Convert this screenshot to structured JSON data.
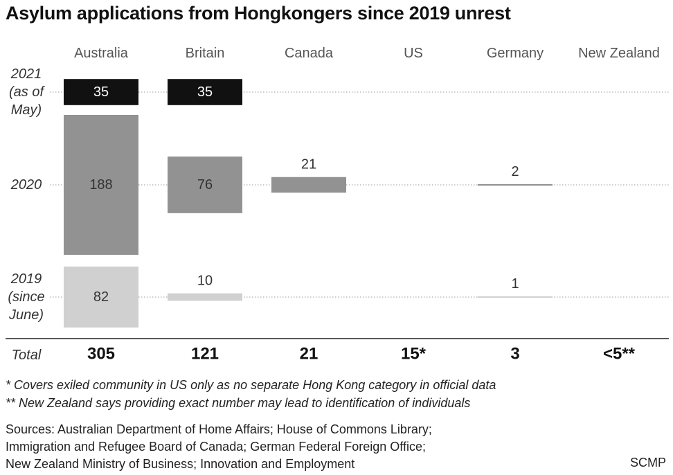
{
  "title": "Asylum applications from Hongkongers since 2019 unrest",
  "colors": {
    "2021": "#111111",
    "2020": "#929292",
    "2019": "#d0d0d0",
    "grid": "#999999"
  },
  "chart_data": {
    "type": "table",
    "categories": [
      "Australia",
      "Britain",
      "Canada",
      "US",
      "Germany",
      "New Zealand"
    ],
    "rows": [
      {
        "label_lines": [
          "2021",
          "(as of",
          "May)"
        ],
        "color_key": "2021",
        "values": [
          35,
          35,
          null,
          null,
          null,
          null
        ],
        "labels": [
          "35",
          "35",
          "",
          "",
          "",
          ""
        ]
      },
      {
        "label_lines": [
          "2020"
        ],
        "color_key": "2020",
        "values": [
          188,
          76,
          21,
          null,
          2,
          null
        ],
        "labels": [
          "188",
          "76",
          "21",
          "",
          "2",
          ""
        ]
      },
      {
        "label_lines": [
          "2019",
          "(since",
          "June)"
        ],
        "color_key": "2019",
        "values": [
          82,
          10,
          null,
          null,
          1,
          null
        ],
        "labels": [
          "82",
          "10",
          "",
          "",
          "1",
          ""
        ]
      }
    ],
    "total_label": "Total",
    "totals": [
      "305",
      "121",
      "21",
      "15*",
      "3",
      "<5**"
    ]
  },
  "footnotes": [
    "* Covers exiled community in US only as no separate Hong Kong category in official data",
    "** New Zealand says providing exact number may lead to identification of individuals"
  ],
  "sources": [
    "Sources: Australian Department of Home Affairs; House of Commons Library;",
    "Immigration and Refugee Board of Canada; German Federal Foreign Office;",
    "New Zealand Ministry of Business; Innovation and Employment"
  ],
  "brand": "SCMP"
}
